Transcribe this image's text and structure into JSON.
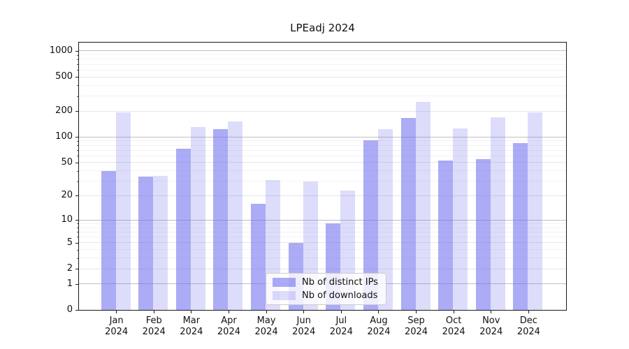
{
  "chart_data": {
    "type": "bar",
    "title": "LPEadj 2024",
    "scale": "log1p",
    "categories": [
      "Jan",
      "Feb",
      "Mar",
      "Apr",
      "May",
      "Jun",
      "Jul",
      "Aug",
      "Sep",
      "Oct",
      "Nov",
      "Dec"
    ],
    "year": "2024",
    "series": [
      {
        "name": "Nb of distinct IPs",
        "values": [
          40,
          34,
          73,
          123,
          16,
          5,
          9,
          91,
          166,
          53,
          55,
          85
        ],
        "color": "rgba(102,102,238,0.55)"
      },
      {
        "name": "Nb of downloads",
        "values": [
          195,
          35,
          130,
          153,
          31,
          30,
          23,
          124,
          255,
          125,
          170,
          195
        ],
        "color": "rgba(102,102,238,0.22)"
      }
    ],
    "y_ticks": [
      0,
      1,
      2,
      5,
      10,
      20,
      50,
      100,
      200,
      500,
      1000
    ],
    "y_minor_ticks": [
      3,
      4,
      6,
      7,
      8,
      9,
      30,
      40,
      60,
      70,
      80,
      90,
      300,
      400,
      600,
      700,
      800,
      900
    ],
    "ylim": [
      0,
      1250
    ],
    "xlabel": "",
    "ylabel": "",
    "grid": true,
    "legend_position": "lower center"
  },
  "style": {
    "bar_color_ips": "rgba(102,102,238,0.55)",
    "bar_color_downloads": "rgba(102,102,238,0.22)",
    "grid_minor": "#f3f3f3",
    "grid_labeled": "#e6e6e6",
    "grid_power10": "#c0c0c0",
    "spine": "#1a1a1a"
  }
}
